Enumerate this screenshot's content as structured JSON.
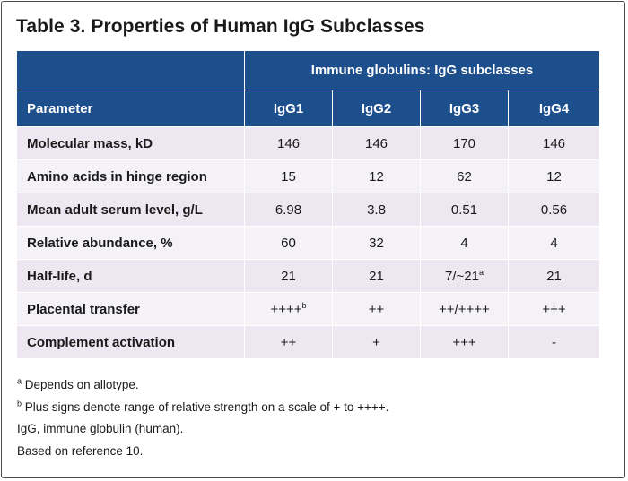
{
  "title": "Table 3. Properties of Human IgG Subclasses",
  "table": {
    "group_header": "Immune globulins: IgG subclasses",
    "param_header": "Parameter",
    "columns": [
      "IgG1",
      "IgG2",
      "IgG3",
      "IgG4"
    ],
    "rows": [
      {
        "param": "Molecular mass, kD",
        "values": [
          "146",
          "146",
          "170",
          "146"
        ]
      },
      {
        "param": "Amino acids in hinge region",
        "values": [
          "15",
          "12",
          "62",
          "12"
        ]
      },
      {
        "param": "Mean adult serum level, g/L",
        "values": [
          "6.98",
          "3.8",
          "0.51",
          "0.56"
        ]
      },
      {
        "param": "Relative abundance, %",
        "values": [
          "60",
          "32",
          "4",
          "4"
        ]
      },
      {
        "param": "Half-life, d",
        "values": [
          "21",
          "21",
          "7/~21",
          "21"
        ],
        "sup": [
          "",
          "",
          "a",
          ""
        ]
      },
      {
        "param": "Placental transfer",
        "values": [
          "++++",
          "++",
          "++/++++",
          "+++"
        ],
        "sup": [
          "b",
          "",
          "",
          ""
        ]
      },
      {
        "param": "Complement activation",
        "values": [
          "++",
          "+",
          "+++",
          "-"
        ]
      }
    ]
  },
  "footnotes": [
    {
      "marker": "a",
      "text": "Depends on allotype."
    },
    {
      "marker": "b",
      "text": "Plus signs denote range of relative strength on a scale of + to ++++."
    },
    {
      "marker": "",
      "text": "IgG, immune globulin (human)."
    },
    {
      "marker": "",
      "text": "Based on reference 10."
    }
  ]
}
